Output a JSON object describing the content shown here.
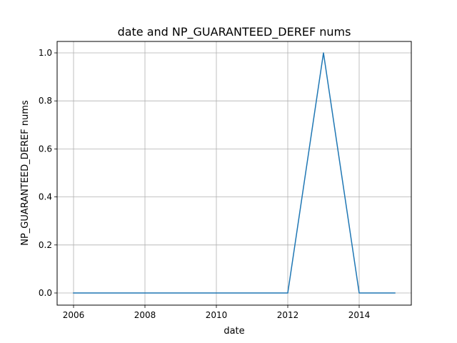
{
  "chart_data": {
    "type": "line",
    "title": "date and NP_GUARANTEED_DEREF nums",
    "xlabel": "date",
    "ylabel": "NP_GUARANTEED_DEREF nums",
    "x_ticks": [
      "2006",
      "2008",
      "2010",
      "2012",
      "2014"
    ],
    "y_ticks": [
      "0.0",
      "0.2",
      "0.4",
      "0.6",
      "0.8",
      "1.0"
    ],
    "grid": true,
    "series": [
      {
        "color": "#1f77b4",
        "x": [
          2006,
          2007,
          2008,
          2009,
          2010,
          2011,
          2012,
          2013,
          2014,
          2015
        ],
        "y": [
          0,
          0,
          0,
          0,
          0,
          0,
          0,
          1,
          0,
          0
        ]
      }
    ]
  }
}
